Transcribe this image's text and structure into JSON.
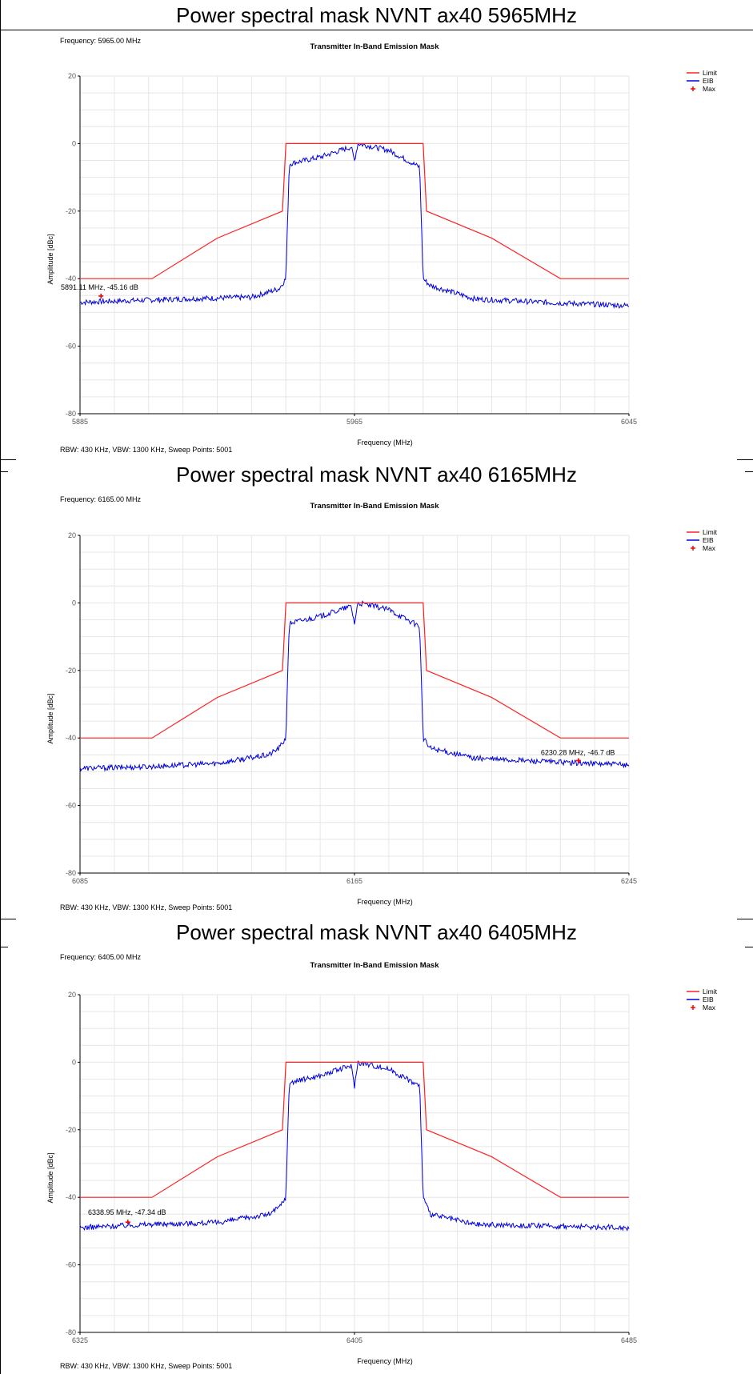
{
  "charts": [
    {
      "heading": "Power spectral mask NVNT ax40 5965MHz",
      "frequency_label": "Frequency: 5965.00 MHz",
      "footer": "RBW: 430 KHz,  VBW: 1300 KHz,  Sweep Points: 5001",
      "marker_label": "5891.11 MHz, -45.16 dB"
    },
    {
      "heading": "Power spectral mask NVNT ax40 6165MHz",
      "frequency_label": "Frequency: 6165.00 MHz",
      "footer": "RBW: 430 KHz,  VBW: 1300 KHz,  Sweep Points: 5001",
      "marker_label": "6230.28 MHz, -46.7 dB"
    },
    {
      "heading": "Power spectral mask NVNT ax40 6405MHz",
      "frequency_label": "Frequency: 6405.00 MHz",
      "footer": "RBW: 430 KHz,  VBW: 1300 KHz,  Sweep Points: 5001",
      "marker_label": "6338.95 MHz, -47.34 dB"
    }
  ],
  "colors": {
    "limit": "#ff2020",
    "eib": "#0000dd",
    "max": "#ff0000",
    "grid": "#e6e6e6"
  },
  "chart_data": [
    {
      "type": "line",
      "title": "Transmitter In-Band Emission Mask",
      "xlabel": "Frequency (MHz)",
      "ylabel": "Amplitude [dBc]",
      "xlim": [
        5885,
        6045
      ],
      "ylim": [
        -80,
        20
      ],
      "xticks": [
        "5885",
        "5965",
        "6045"
      ],
      "yticks": [
        "20",
        "0",
        "-20",
        "-40",
        "-60",
        "-80"
      ],
      "legend": [
        "Limit",
        "EIB",
        "Max"
      ],
      "legend_position": "top-right",
      "grid": true,
      "series": [
        {
          "name": "Limit",
          "x": [
            5885,
            5906,
            5925,
            5944,
            5945,
            5985,
            5986,
            6005,
            6025,
            6045
          ],
          "y": [
            -40,
            -40,
            -28,
            -20,
            0,
            0,
            -20,
            -28,
            -40,
            -40
          ]
        },
        {
          "name": "EIB",
          "x": [
            5885,
            5915,
            5935,
            5943,
            5945,
            5946,
            5955,
            5964,
            5965,
            5966,
            5975,
            5984,
            5985,
            5987,
            6000,
            6020,
            6045
          ],
          "y": [
            -47,
            -46,
            -45.5,
            -43,
            -40,
            -6,
            -4,
            -1,
            -5,
            0,
            -2,
            -7,
            -40,
            -42,
            -46,
            -47,
            -48
          ]
        },
        {
          "name": "Max",
          "x": [
            5891.11
          ],
          "y": [
            -45.16
          ]
        }
      ]
    },
    {
      "type": "line",
      "title": "Transmitter In-Band Emission Mask",
      "xlabel": "Frequency (MHz)",
      "ylabel": "Amplitude [dBc]",
      "xlim": [
        6085,
        6245
      ],
      "ylim": [
        -80,
        20
      ],
      "xticks": [
        "6085",
        "6165",
        "6245"
      ],
      "yticks": [
        "20",
        "0",
        "-20",
        "-40",
        "-60",
        "-80"
      ],
      "legend": [
        "Limit",
        "EIB",
        "Max"
      ],
      "legend_position": "top-right",
      "grid": true,
      "series": [
        {
          "name": "Limit",
          "x": [
            6085,
            6106,
            6125,
            6144,
            6145,
            6185,
            6186,
            6205,
            6225,
            6245
          ],
          "y": [
            -40,
            -40,
            -28,
            -20,
            0,
            0,
            -20,
            -28,
            -40,
            -40
          ]
        },
        {
          "name": "EIB",
          "x": [
            6085,
            6105,
            6125,
            6140,
            6143,
            6145,
            6146,
            6155,
            6164,
            6165,
            6166,
            6175,
            6184,
            6185,
            6187,
            6200,
            6220,
            6245
          ],
          "y": [
            -49,
            -48.5,
            -47.5,
            -45,
            -43,
            -40,
            -6,
            -4,
            -1,
            -6,
            0,
            -2,
            -7,
            -40,
            -43,
            -46,
            -47,
            -48
          ]
        },
        {
          "name": "Max",
          "x": [
            6230.28
          ],
          "y": [
            -46.7
          ]
        }
      ]
    },
    {
      "type": "line",
      "title": "Transmitter In-Band Emission Mask",
      "xlabel": "Frequency (MHz)",
      "ylabel": "Amplitude [dBc]",
      "xlim": [
        6325,
        6485
      ],
      "ylim": [
        -80,
        20
      ],
      "xticks": [
        "6325",
        "6405",
        "6485"
      ],
      "yticks": [
        "20",
        "0",
        "-20",
        "-40",
        "-60",
        "-80"
      ],
      "legend": [
        "Limit",
        "EIB",
        "Max"
      ],
      "legend_position": "top-right",
      "grid": true,
      "series": [
        {
          "name": "Limit",
          "x": [
            6325,
            6346,
            6365,
            6384,
            6385,
            6425,
            6426,
            6445,
            6465,
            6485
          ],
          "y": [
            -40,
            -40,
            -28,
            -20,
            0,
            0,
            -20,
            -28,
            -40,
            -40
          ]
        },
        {
          "name": "EIB",
          "x": [
            6325,
            6345,
            6365,
            6380,
            6383,
            6385,
            6386,
            6395,
            6404,
            6405,
            6406,
            6415,
            6424,
            6425,
            6427,
            6440,
            6460,
            6485
          ],
          "y": [
            -49,
            -48,
            -47.5,
            -45,
            -43,
            -40,
            -6,
            -4,
            -1,
            -7,
            0,
            -2,
            -7,
            -40,
            -45,
            -48,
            -48.5,
            -49
          ]
        },
        {
          "name": "Max",
          "x": [
            6338.95
          ],
          "y": [
            -47.34
          ]
        }
      ]
    }
  ]
}
